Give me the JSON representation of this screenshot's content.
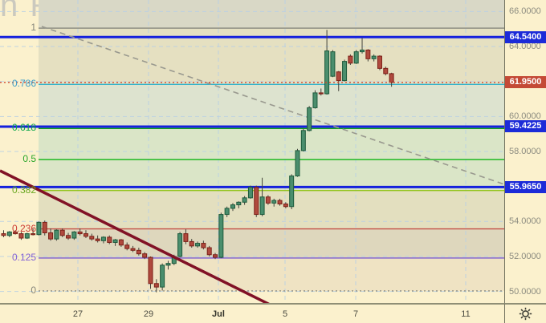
{
  "watermark": "n Ruble TOM",
  "chart_data": {
    "type": "candlestick",
    "title_watermark": "n Ruble TOM",
    "ylim": [
      49.34,
      66.66
    ],
    "grid": true,
    "price_ticks": [
      {
        "label": "66.0000",
        "price": 66.0
      },
      {
        "label": "64.0000",
        "price": 64.0
      },
      {
        "label": "60.0000",
        "price": 60.0
      },
      {
        "label": "58.0000",
        "price": 58.0
      },
      {
        "label": "54.0000",
        "price": 54.0
      },
      {
        "label": "52.0000",
        "price": 52.0
      },
      {
        "label": "50.0000",
        "price": 50.0
      }
    ],
    "grid_prices": [
      66,
      64,
      62,
      60,
      58,
      56,
      54,
      52,
      50
    ],
    "time_axis": [
      {
        "label": "27",
        "x": 97,
        "bold": false
      },
      {
        "label": "29",
        "x": 185,
        "bold": false
      },
      {
        "label": "Jul",
        "x": 272,
        "bold": true
      },
      {
        "label": "5",
        "x": 355,
        "bold": false
      },
      {
        "label": "7",
        "x": 443,
        "bold": false
      },
      {
        "label": "11",
        "x": 580,
        "bold": false
      }
    ],
    "rays": [
      {
        "label": "64.5400",
        "price": 64.54,
        "color": "#1c2bd8"
      },
      {
        "label": "59.4225",
        "price": 59.4225,
        "color": "#1c2bd8"
      },
      {
        "label": "55.9650",
        "price": 55.965,
        "color": "#1c2bd8"
      }
    ],
    "last_price": {
      "label": "61.9500",
      "price": 61.95,
      "color": "#c44a36",
      "line_color": "#d14a30"
    },
    "fib": {
      "x_start": 48,
      "low_price": 50.03,
      "high_price": 65.05,
      "levels": [
        {
          "f": 1.0,
          "label": "1",
          "line_color": "#8f8f84",
          "label_color": "#85857a",
          "style": "solid"
        },
        {
          "f": 0.786,
          "label": "0.786",
          "line_color": "#31b2cb",
          "label_color": "#3d9dc8",
          "style": "solid"
        },
        {
          "f": 0.618,
          "label": "0.618",
          "line_color": "#11a21c",
          "label_color": "#0ca64a",
          "style": "solid"
        },
        {
          "f": 0.5,
          "label": "0.5",
          "line_color": "#0cb412",
          "label_color": "#2aa62a",
          "style": "solid"
        },
        {
          "f": 0.382,
          "label": "0.382",
          "line_color": "#93c41c",
          "label_color": "#6aa821",
          "style": "solid"
        },
        {
          "f": 0.236,
          "label": "0.236",
          "line_color": "#c4524a",
          "label_color": "#cc3b33",
          "style": "solid"
        },
        {
          "f": 0.125,
          "label": "0.125",
          "line_color": "#7e5fd2",
          "label_color": "#8161d6",
          "style": "solid"
        },
        {
          "f": 0.0,
          "label": "0",
          "line_color": "#8f8f84",
          "label_color": "#85857a",
          "style": "dotted"
        }
      ],
      "bands": [
        {
          "from": "top",
          "to": 1.0,
          "color": "#d9d8c6"
        },
        {
          "from": 1.0,
          "to": 0.786,
          "color": "#e5e0c1"
        },
        {
          "from": 0.786,
          "to": 0.618,
          "color": "#dde3cf"
        },
        {
          "from": 0.618,
          "to": 0.5,
          "color": "#dae5c7"
        },
        {
          "from": 0.5,
          "to": 0.382,
          "color": "#dae5c7"
        },
        {
          "from": 0.382,
          "to": 0.236,
          "color": "#e3dfbf"
        },
        {
          "from": 0.236,
          "to": 0.125,
          "color": "#ded7bd"
        },
        {
          "from": 0.125,
          "to": 0.0,
          "color": "#efe3c3"
        }
      ]
    },
    "trendline": {
      "x1": 0,
      "y1": 213,
      "x2": 336,
      "y2": 380,
      "color": "#811226",
      "width": 3.5
    },
    "dashed_line": {
      "x1": 52,
      "y1": 33,
      "x2": 628,
      "y2": 230,
      "color": "#99998f",
      "width": 1.6
    },
    "candles": {
      "x_start": 4.5,
      "x_step": 7.32,
      "body_width": 5,
      "up_fill": "#4a8e6d",
      "up_stroke": "#1d5a3c",
      "down_fill": "#b04a3e",
      "down_stroke": "#7c1f17",
      "wick_color": "#44443c",
      "ohlc": [
        [
          53.3,
          53.5,
          53.1,
          53.2
        ],
        [
          53.2,
          53.45,
          53.1,
          53.4
        ],
        [
          53.4,
          53.5,
          53.25,
          53.3
        ],
        [
          53.3,
          53.4,
          52.95,
          53.05
        ],
        [
          53.05,
          53.35,
          53.0,
          53.3
        ],
        [
          53.3,
          53.6,
          53.2,
          53.25
        ],
        [
          53.25,
          54.0,
          53.2,
          53.95
        ],
        [
          53.95,
          54.05,
          53.2,
          53.35
        ],
        [
          53.35,
          53.6,
          52.9,
          53.0
        ],
        [
          53.0,
          53.55,
          52.9,
          53.5
        ],
        [
          53.5,
          53.6,
          53.1,
          53.2
        ],
        [
          53.2,
          53.35,
          52.95,
          53.05
        ],
        [
          53.05,
          53.45,
          52.95,
          53.4
        ],
        [
          53.4,
          53.6,
          53.2,
          53.3
        ],
        [
          53.3,
          53.5,
          53.05,
          53.15
        ],
        [
          53.15,
          53.3,
          52.9,
          53.0
        ],
        [
          53.0,
          53.2,
          52.8,
          52.9
        ],
        [
          52.9,
          53.15,
          52.75,
          53.1
        ],
        [
          53.1,
          53.2,
          52.7,
          52.8
        ],
        [
          52.8,
          53.0,
          52.6,
          52.95
        ],
        [
          52.95,
          53.0,
          52.55,
          52.65
        ],
        [
          52.65,
          52.8,
          52.35,
          52.45
        ],
        [
          52.45,
          52.6,
          52.25,
          52.35
        ],
        [
          52.35,
          52.5,
          52.05,
          52.15
        ],
        [
          52.15,
          52.25,
          51.85,
          51.95
        ],
        [
          51.95,
          52.0,
          50.15,
          50.45
        ],
        [
          50.45,
          50.7,
          49.95,
          50.25
        ],
        [
          50.25,
          51.6,
          50.05,
          51.5
        ],
        [
          51.5,
          51.75,
          51.25,
          51.6
        ],
        [
          51.6,
          52.1,
          51.5,
          52.0
        ],
        [
          52.0,
          53.4,
          51.95,
          53.3
        ],
        [
          53.3,
          53.55,
          52.7,
          52.85
        ],
        [
          52.85,
          53.0,
          52.5,
          52.6
        ],
        [
          52.6,
          52.85,
          52.5,
          52.75
        ],
        [
          52.75,
          52.9,
          52.4,
          52.5
        ],
        [
          52.5,
          52.6,
          52.0,
          52.1
        ],
        [
          52.1,
          52.2,
          51.85,
          51.95
        ],
        [
          51.95,
          54.5,
          51.9,
          54.4
        ],
        [
          54.4,
          54.85,
          54.25,
          54.75
        ],
        [
          54.75,
          55.05,
          54.6,
          54.95
        ],
        [
          54.95,
          55.15,
          54.75,
          55.1
        ],
        [
          55.1,
          55.45,
          54.95,
          55.35
        ],
        [
          55.35,
          56.05,
          55.3,
          55.95
        ],
        [
          55.95,
          56.05,
          54.25,
          54.4
        ],
        [
          54.4,
          56.5,
          54.3,
          55.4
        ],
        [
          55.4,
          55.5,
          54.95,
          55.05
        ],
        [
          55.05,
          55.3,
          54.85,
          55.2
        ],
        [
          55.2,
          55.3,
          54.9,
          55.0
        ],
        [
          55.0,
          55.1,
          54.75,
          54.85
        ],
        [
          54.85,
          56.7,
          54.7,
          56.6
        ],
        [
          56.6,
          58.15,
          56.55,
          58.05
        ],
        [
          58.05,
          59.3,
          58.0,
          59.2
        ],
        [
          59.2,
          60.6,
          59.15,
          60.5
        ],
        [
          60.5,
          61.5,
          60.45,
          61.35
        ],
        [
          61.35,
          61.6,
          61.2,
          61.3
        ],
        [
          61.3,
          64.95,
          61.25,
          63.75
        ],
        [
          62.3,
          63.8,
          62.25,
          63.7
        ],
        [
          62.55,
          62.6,
          61.45,
          62.05
        ],
        [
          62.05,
          63.25,
          62.0,
          63.15
        ],
        [
          63.45,
          63.55,
          62.95,
          63.05
        ],
        [
          63.05,
          63.8,
          63.0,
          63.7
        ],
        [
          63.7,
          64.5,
          63.6,
          63.8
        ],
        [
          63.8,
          63.85,
          63.15,
          63.3
        ],
        [
          63.3,
          63.55,
          63.15,
          63.45
        ],
        [
          63.45,
          63.5,
          62.65,
          62.75
        ],
        [
          62.75,
          62.85,
          62.35,
          62.45
        ],
        [
          62.45,
          62.5,
          61.7,
          61.95
        ]
      ]
    },
    "grid_color": "#b9d0e4",
    "background": "#fbf1cd"
  },
  "toolbar": {
    "gear_icon": "settings"
  }
}
